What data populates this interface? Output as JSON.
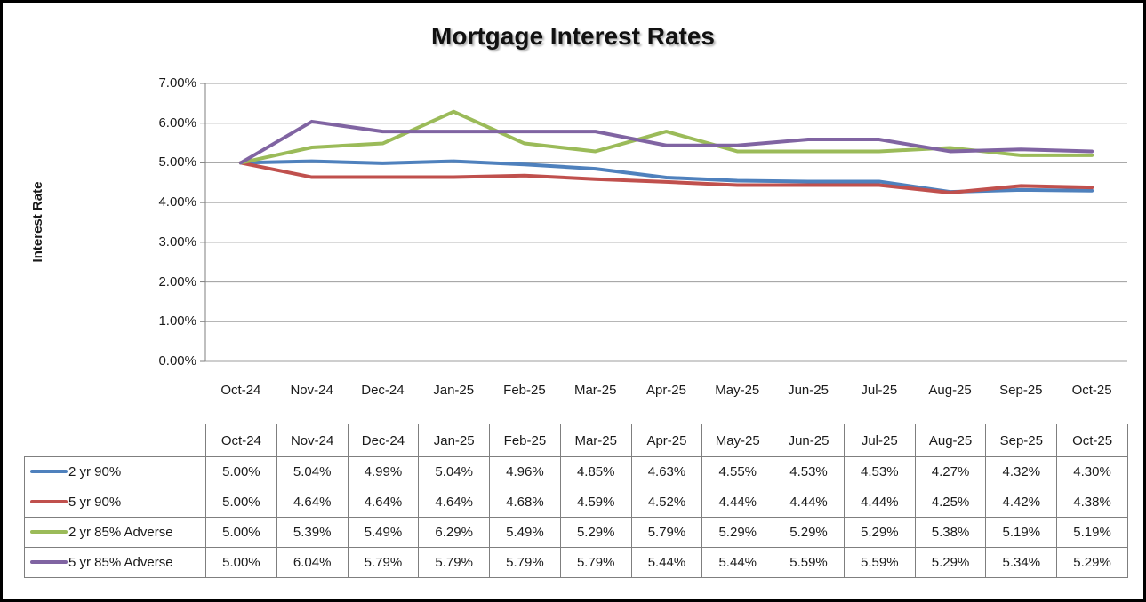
{
  "window": {
    "background": "#ffffff",
    "border_color": "#000000"
  },
  "chart_data": {
    "type": "line",
    "title": "Mortgage Interest Rates",
    "xlabel": "",
    "ylabel": "Interest Rate",
    "ylim": [
      0,
      7
    ],
    "ytick_labels": [
      "0.00%",
      "1.00%",
      "2.00%",
      "3.00%",
      "4.00%",
      "5.00%",
      "6.00%",
      "7.00%"
    ],
    "grid": true,
    "legend_position": "table-rows-left",
    "value_decimals": 2,
    "value_suffix": "%",
    "gridline_color": "#9d9d9d",
    "axis_color": "#7f7f7f",
    "table_border_color": "#7f7f7f",
    "categories": [
      "Oct-24",
      "Nov-24",
      "Dec-24",
      "Jan-25",
      "Feb-25",
      "Mar-25",
      "Apr-25",
      "May-25",
      "Jun-25",
      "Jul-25",
      "Aug-25",
      "Sep-25",
      "Oct-25"
    ],
    "series": [
      {
        "name": "2 yr 90%",
        "color": "#4F81BD",
        "values": [
          5.0,
          5.04,
          4.99,
          5.04,
          4.96,
          4.85,
          4.63,
          4.55,
          4.53,
          4.53,
          4.27,
          4.32,
          4.3
        ]
      },
      {
        "name": "5 yr 90%",
        "color": "#C0504D",
        "values": [
          5.0,
          4.64,
          4.64,
          4.64,
          4.68,
          4.59,
          4.52,
          4.44,
          4.44,
          4.44,
          4.25,
          4.42,
          4.38
        ]
      },
      {
        "name": "2 yr 85% Adverse",
        "color": "#9BBB59",
        "values": [
          5.0,
          5.39,
          5.49,
          6.29,
          5.49,
          5.29,
          5.79,
          5.29,
          5.29,
          5.29,
          5.38,
          5.19,
          5.19
        ]
      },
      {
        "name": "5 yr 85% Adverse",
        "color": "#8064A2",
        "values": [
          5.0,
          6.04,
          5.79,
          5.79,
          5.79,
          5.79,
          5.44,
          5.44,
          5.59,
          5.59,
          5.29,
          5.34,
          5.29
        ]
      }
    ]
  }
}
